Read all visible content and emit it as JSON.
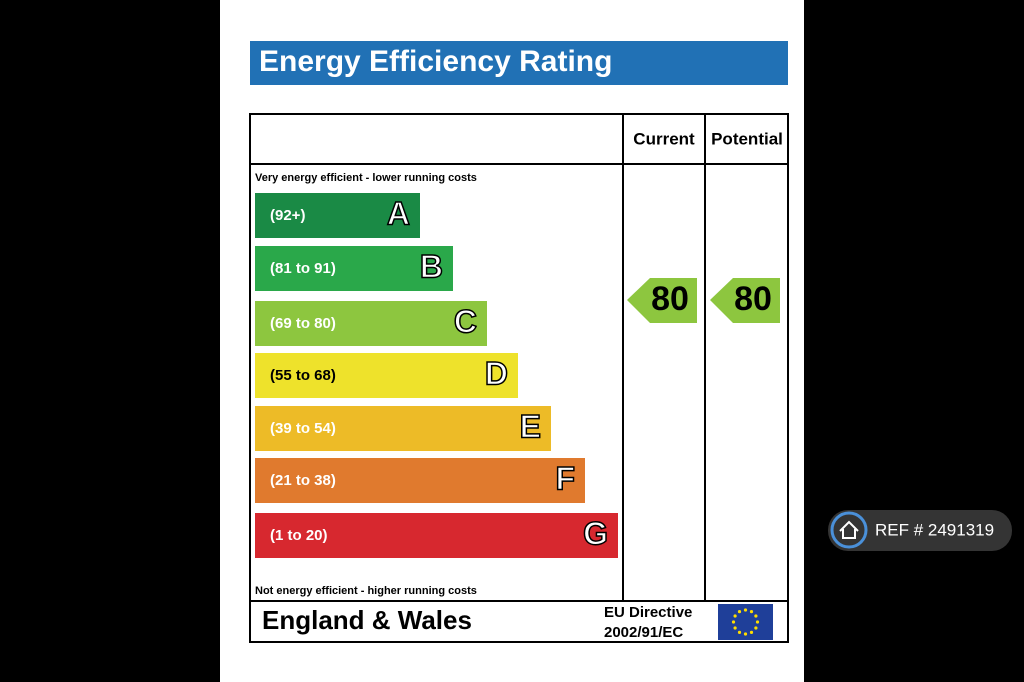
{
  "header": {
    "title": "Energy Efficiency Rating"
  },
  "columns": {
    "current": "Current",
    "potential": "Potential"
  },
  "top_note": "Very energy efficient - lower running costs",
  "bottom_note": "Not energy efficient - higher running costs",
  "bands": [
    {
      "range": "(92+)",
      "letter": "A",
      "color": "#1a8a45"
    },
    {
      "range": "(81 to 91)",
      "letter": "B",
      "color": "#2aa84a"
    },
    {
      "range": "(69 to 80)",
      "letter": "C",
      "color": "#8dc63f"
    },
    {
      "range": "(55 to 68)",
      "letter": "D",
      "color": "#eee22b"
    },
    {
      "range": "(39 to 54)",
      "letter": "E",
      "color": "#edbb27"
    },
    {
      "range": "(21 to 38)",
      "letter": "F",
      "color": "#e07a2e"
    },
    {
      "range": "(1 to 20)",
      "letter": "G",
      "color": "#d7282f"
    }
  ],
  "ratings": {
    "current": "80",
    "potential": "80",
    "color": "#8dc63f"
  },
  "footer": {
    "region": "England & Wales",
    "directive_line1": "EU Directive",
    "directive_line2": "2002/91/EC"
  },
  "badge": {
    "ref": "REF # 2491319"
  }
}
